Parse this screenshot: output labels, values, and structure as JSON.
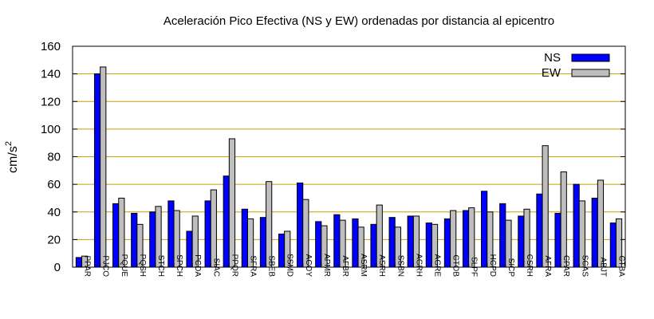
{
  "chart_data": {
    "type": "bar",
    "title": "Aceleración Pico Efectiva (NS y EW) ordenadas por distancia al epicentro",
    "xlabel": "",
    "ylabel": "cm/s",
    "ylabel_superscript": "2",
    "ylim": [
      0,
      160
    ],
    "yticks": [
      0,
      20,
      40,
      60,
      80,
      100,
      120,
      140,
      160
    ],
    "grid": true,
    "legend_position": "top-right",
    "colors": {
      "NS": "#0000ff",
      "EW": "#bebebe",
      "grid": "#c8a000"
    },
    "categories": [
      "PPAR",
      "PJCO",
      "PQUE",
      "PQSH",
      "STCH",
      "SPCH",
      "PCDA",
      "SIAC",
      "PPQR",
      "SFRA",
      "SBEB",
      "SSMD",
      "ACOY",
      "APMR",
      "AFBR",
      "ASRM",
      "ASRH",
      "SSBN",
      "AGRH",
      "AGRE",
      "CTOB",
      "SLPF",
      "HCPD",
      "SICP",
      "CSRH",
      "AFRA",
      "CPAR",
      "SCAS",
      "ABJT",
      "CTBA"
    ],
    "series": [
      {
        "name": "NS",
        "values": [
          7,
          140,
          46,
          39,
          40,
          48,
          26,
          48,
          66,
          42,
          36,
          24,
          61,
          33,
          38,
          35,
          31,
          36,
          37,
          32,
          35,
          41,
          55,
          46,
          37,
          53,
          39,
          60,
          50,
          32
        ]
      },
      {
        "name": "EW",
        "values": [
          8,
          145,
          50,
          31,
          44,
          41,
          37,
          56,
          93,
          35,
          62,
          26,
          49,
          30,
          34,
          29,
          45,
          29,
          37,
          31,
          41,
          43,
          40,
          34,
          42,
          88,
          69,
          48,
          63,
          35
        ]
      }
    ]
  }
}
